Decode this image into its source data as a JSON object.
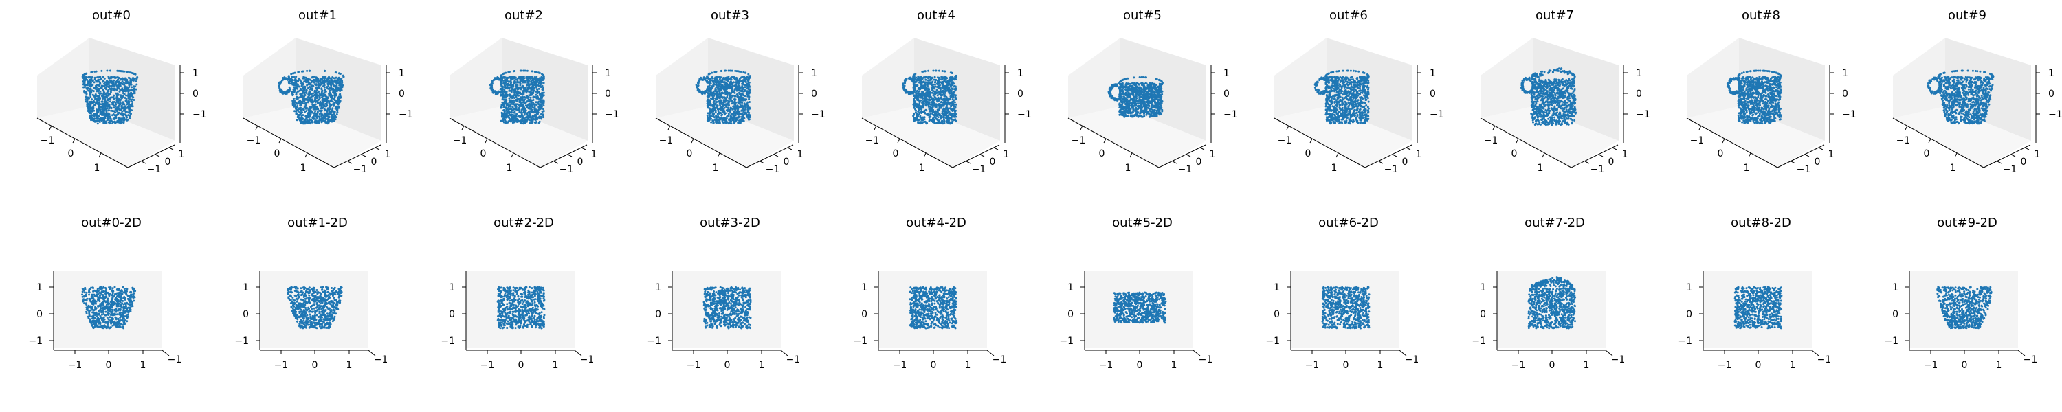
{
  "chart_data": {
    "type": "scatter",
    "series_color": "#1f77b4",
    "pane_color": "#f2f2f2",
    "tick_values": [
      -1,
      0,
      1
    ],
    "tick_labels": [
      "−1",
      "0",
      "1"
    ],
    "depth_tick_label": "−1",
    "axis_range": [
      -1.6,
      1.6
    ],
    "panels": [
      {
        "title": "out#0",
        "view": "3d",
        "shape": "cup",
        "handle": false
      },
      {
        "title": "out#1",
        "view": "3d",
        "shape": "cup",
        "handle": true
      },
      {
        "title": "out#2",
        "view": "3d",
        "shape": "mug",
        "handle": true
      },
      {
        "title": "out#3",
        "view": "3d",
        "shape": "mug",
        "handle": true
      },
      {
        "title": "out#4",
        "view": "3d",
        "shape": "mug",
        "handle": true
      },
      {
        "title": "out#5",
        "view": "3d",
        "shape": "mug_small",
        "handle": true
      },
      {
        "title": "out#6",
        "view": "3d",
        "shape": "mug",
        "handle": true
      },
      {
        "title": "out#7",
        "view": "3d",
        "shape": "mug_dome",
        "handle": true
      },
      {
        "title": "out#8",
        "view": "3d",
        "shape": "mug",
        "handle": true
      },
      {
        "title": "out#9",
        "view": "3d",
        "shape": "cup",
        "handle": true
      },
      {
        "title": "out#0-2D",
        "view": "2d",
        "shape": "cup",
        "handle": false
      },
      {
        "title": "out#1-2D",
        "view": "2d",
        "shape": "cup",
        "handle": false
      },
      {
        "title": "out#2-2D",
        "view": "2d",
        "shape": "mug",
        "handle": false
      },
      {
        "title": "out#3-2D",
        "view": "2d",
        "shape": "mug",
        "handle": false
      },
      {
        "title": "out#4-2D",
        "view": "2d",
        "shape": "mug",
        "handle": false
      },
      {
        "title": "out#5-2D",
        "view": "2d",
        "shape": "mug_small",
        "handle": false
      },
      {
        "title": "out#6-2D",
        "view": "2d",
        "shape": "mug",
        "handle": false
      },
      {
        "title": "out#7-2D",
        "view": "2d",
        "shape": "mug_dome",
        "handle": false
      },
      {
        "title": "out#8-2D",
        "view": "2d",
        "shape": "mug",
        "handle": false
      },
      {
        "title": "out#9-2D",
        "view": "2d",
        "shape": "cup",
        "handle": false
      }
    ]
  }
}
